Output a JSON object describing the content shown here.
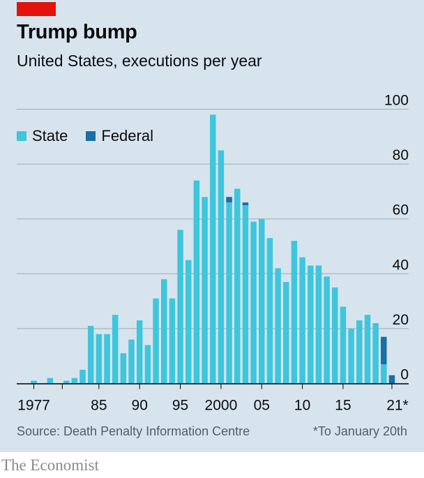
{
  "header": {
    "title": "Trump bump",
    "subtitle": "United States, executions per year"
  },
  "legend": [
    {
      "label": "State",
      "color": "#3ec6dc"
    },
    {
      "label": "Federal",
      "color": "#1a6fa3"
    }
  ],
  "footer": {
    "source": "Source: Death Penalty Information Centre",
    "footnote": "*To January 20th",
    "brand": "The Economist"
  },
  "colors": {
    "background": "#d7e4ee",
    "accent": "#e3120b",
    "state": "#3ec6dc",
    "federal": "#1a6fa3",
    "gridline": "#9aaab4",
    "axis": "#000000"
  },
  "chart_data": {
    "type": "bar",
    "stacked": true,
    "title": "Trump bump",
    "subtitle": "United States, executions per year",
    "x": [
      1977,
      1978,
      1979,
      1980,
      1981,
      1982,
      1983,
      1984,
      1985,
      1986,
      1987,
      1988,
      1989,
      1990,
      1991,
      1992,
      1993,
      1994,
      1995,
      1996,
      1997,
      1998,
      1999,
      2000,
      2001,
      2002,
      2003,
      2004,
      2005,
      2006,
      2007,
      2008,
      2009,
      2010,
      2011,
      2012,
      2013,
      2014,
      2015,
      2016,
      2017,
      2018,
      2019,
      2020,
      2021
    ],
    "series": [
      {
        "name": "State",
        "values": [
          1,
          0,
          2,
          0,
          1,
          2,
          5,
          21,
          18,
          18,
          25,
          11,
          16,
          23,
          14,
          31,
          38,
          31,
          56,
          45,
          74,
          68,
          98,
          85,
          66,
          71,
          65,
          59,
          60,
          53,
          42,
          37,
          52,
          46,
          43,
          43,
          39,
          35,
          28,
          20,
          23,
          25,
          22,
          7,
          0
        ]
      },
      {
        "name": "Federal",
        "values": [
          0,
          0,
          0,
          0,
          0,
          0,
          0,
          0,
          0,
          0,
          0,
          0,
          0,
          0,
          0,
          0,
          0,
          0,
          0,
          0,
          0,
          0,
          0,
          0,
          2,
          0,
          1,
          0,
          0,
          0,
          0,
          0,
          0,
          0,
          0,
          0,
          0,
          0,
          0,
          0,
          0,
          0,
          0,
          10,
          3
        ]
      }
    ],
    "x_tick_labels": [
      {
        "year": 1977,
        "label": "1977"
      },
      {
        "year": 1985,
        "label": "85"
      },
      {
        "year": 1990,
        "label": "90"
      },
      {
        "year": 1995,
        "label": "95"
      },
      {
        "year": 2000,
        "label": "2000"
      },
      {
        "year": 2005,
        "label": "05"
      },
      {
        "year": 2010,
        "label": "10"
      },
      {
        "year": 2015,
        "label": "15"
      },
      {
        "year": 2021,
        "label": "21*"
      }
    ],
    "y_ticks": [
      0,
      20,
      40,
      60,
      80,
      100
    ],
    "ylim": [
      0,
      100
    ],
    "y_axis_side": "right",
    "grid": true,
    "legend_position": "top-left"
  }
}
